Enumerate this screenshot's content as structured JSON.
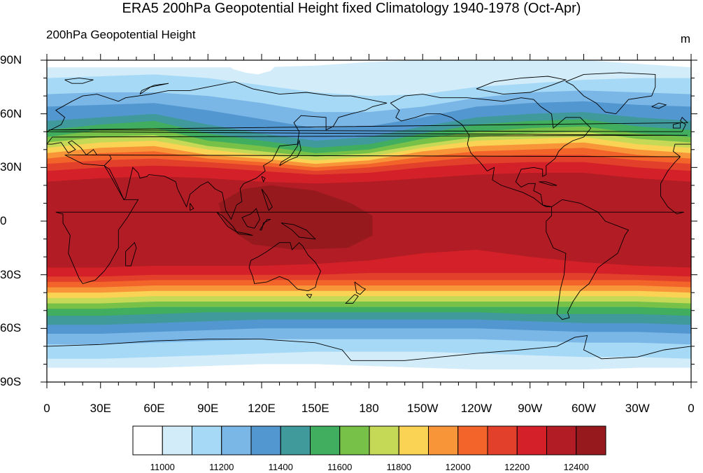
{
  "title": "ERA5 200hPa Geopotential Height fixed Climatology 1940-1978 (Oct-Apr)",
  "subtitle": "200hPa Geopotential Height",
  "units": "m",
  "lat_labels": [
    "90N",
    "60N",
    "30N",
    "0",
    "30S",
    "60S",
    "90S"
  ],
  "lon_labels": [
    "0",
    "30E",
    "60E",
    "90E",
    "120E",
    "150E",
    "180",
    "150W",
    "120W",
    "90W",
    "60W",
    "30W",
    "0"
  ],
  "colorbar": {
    "labels": [
      "11000",
      "11200",
      "11400",
      "11600",
      "11800",
      "12000",
      "12200",
      "12400"
    ],
    "levels": [
      11000,
      11100,
      11200,
      11300,
      11400,
      11500,
      11600,
      11700,
      11800,
      11900,
      12000,
      12100,
      12200,
      12300,
      12400
    ],
    "colors": [
      "#ffffff",
      "#d2ecf9",
      "#a6d9f6",
      "#7ab6e6",
      "#5297d0",
      "#40999b",
      "#41ad5e",
      "#78c149",
      "#c6d957",
      "#fad354",
      "#f99539",
      "#f2642a",
      "#e2402b",
      "#d32029",
      "#b21c24",
      "#961a1d"
    ]
  }
}
